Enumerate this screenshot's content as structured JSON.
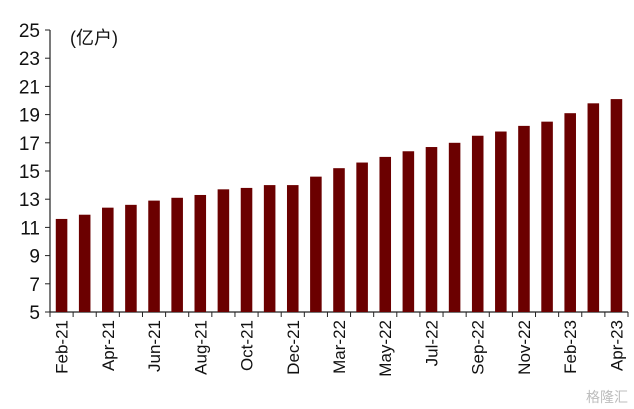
{
  "chart_data": {
    "type": "bar",
    "unit_label": "(亿户)",
    "categories": [
      "Feb-21",
      "Mar-21",
      "Apr-21",
      "May-21",
      "Jun-21",
      "Jul-21",
      "Aug-21",
      "Sep-21",
      "Oct-21",
      "Nov-21",
      "Dec-21",
      "Jan-22",
      "Mar-22",
      "Apr-22",
      "May-22",
      "Jun-22",
      "Jul-22",
      "Aug-22",
      "Sep-22",
      "Oct-22",
      "Nov-22",
      "Dec-22",
      "Feb-23",
      "Mar-23",
      "Apr-23"
    ],
    "values": [
      11.6,
      11.9,
      12.4,
      12.6,
      12.9,
      13.1,
      13.3,
      13.7,
      13.8,
      14.0,
      14.0,
      14.6,
      15.2,
      15.6,
      16.0,
      16.4,
      16.7,
      17.0,
      17.5,
      17.8,
      18.2,
      18.5,
      19.1,
      19.8,
      20.1
    ],
    "x_tick_labels": [
      "Feb-21",
      "Apr-21",
      "Jun-21",
      "Aug-21",
      "Oct-21",
      "Dec-21",
      "Mar-22",
      "May-22",
      "Jul-22",
      "Sep-22",
      "Nov-22",
      "Feb-23",
      "Apr-23"
    ],
    "y_ticks": [
      5,
      7,
      9,
      11,
      13,
      15,
      17,
      19,
      21,
      23,
      25
    ],
    "ylim": [
      5,
      25
    ],
    "grid": false,
    "bar_color": "#6b0000"
  },
  "watermark": "格隆汇"
}
